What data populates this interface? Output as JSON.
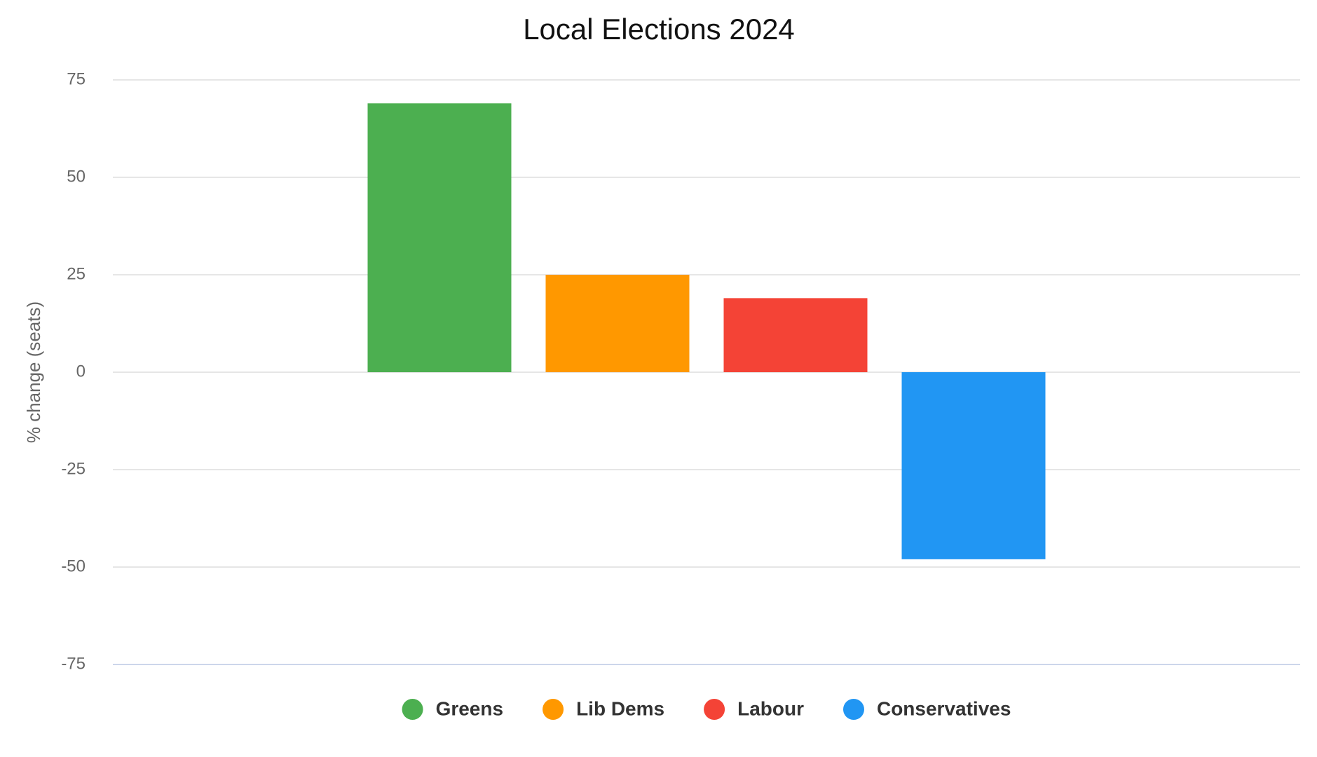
{
  "chart_data": {
    "type": "bar",
    "title": "Local Elections 2024",
    "y_label": "% change (seats)",
    "categories": [
      null
    ],
    "series": [
      {
        "name": "Greens",
        "color": "#4caf50",
        "values": [
          69
        ]
      },
      {
        "name": "Lib Dems",
        "color": "#ff9800",
        "values": [
          25
        ]
      },
      {
        "name": "Labour",
        "color": "#f44336",
        "values": [
          19
        ]
      },
      {
        "name": "Conservatives",
        "color": "#2196f3",
        "values": [
          -48
        ]
      }
    ],
    "ylim": [
      -75,
      75
    ],
    "yticks": [
      -75,
      -50,
      -25,
      0,
      25,
      50,
      75
    ],
    "grid": true,
    "legend": "bottom"
  }
}
